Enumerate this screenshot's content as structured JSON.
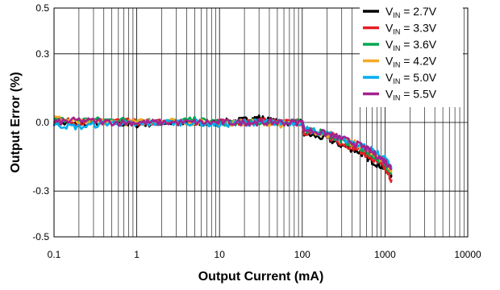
{
  "chart_data": {
    "type": "line",
    "xlabel": "Output Current (mA)",
    "ylabel": "Output Error (%)",
    "x_scale": "log",
    "xlim": [
      0.1,
      10000
    ],
    "ylim": [
      -0.5,
      0.5
    ],
    "x_ticks": [
      0.1,
      1,
      10,
      100,
      1000,
      10000
    ],
    "x_tick_labels": [
      "0.1",
      "1",
      "10",
      "100",
      "1000",
      "10000"
    ],
    "y_ticks": [
      0.5,
      0.3,
      0.0,
      -0.3,
      -0.5
    ],
    "y_tick_labels": [
      "0.5",
      "0.3",
      "0.0",
      "-0.3",
      "-0.5"
    ],
    "grid": true,
    "legend_position": "top-right",
    "series": [
      {
        "name": "V_IN = 2.7V",
        "label_main": "V",
        "label_sub": "IN",
        "label_rest": " = 2.7V",
        "color": "#000000",
        "x": [
          0.1,
          0.2,
          0.5,
          1,
          2,
          5,
          10,
          20,
          30,
          50,
          100,
          105,
          200,
          300,
          500,
          700,
          1000,
          1200
        ],
        "y": [
          0.0,
          -0.01,
          0.0,
          -0.01,
          0.0,
          -0.01,
          0.0,
          0.01,
          0.02,
          0.0,
          0.0,
          -0.05,
          -0.07,
          -0.1,
          -0.13,
          -0.17,
          -0.2,
          -0.23
        ]
      },
      {
        "name": "V_IN = 3.3V",
        "label_main": "V",
        "label_sub": "IN",
        "label_rest": " = 3.3V",
        "color": "#e41e25",
        "x": [
          0.1,
          0.2,
          0.5,
          1,
          2,
          5,
          10,
          20,
          30,
          50,
          100,
          105,
          200,
          300,
          500,
          700,
          1000,
          1200
        ],
        "y": [
          0.01,
          0.0,
          0.01,
          0.0,
          0.0,
          0.0,
          0.0,
          0.0,
          0.01,
          0.0,
          0.0,
          -0.04,
          -0.06,
          -0.09,
          -0.12,
          -0.16,
          -0.2,
          -0.25
        ]
      },
      {
        "name": "V_IN = 3.6V",
        "label_main": "V",
        "label_sub": "IN",
        "label_rest": " = 3.6V",
        "color": "#00a650",
        "x": [
          0.1,
          0.2,
          0.5,
          1,
          2,
          5,
          10,
          20,
          30,
          50,
          100,
          105,
          200,
          300,
          500,
          700,
          1000,
          1200
        ],
        "y": [
          0.01,
          0.01,
          0.01,
          0.01,
          0.0,
          0.01,
          0.0,
          0.0,
          0.0,
          0.0,
          0.0,
          -0.03,
          -0.05,
          -0.08,
          -0.11,
          -0.14,
          -0.18,
          -0.22
        ]
      },
      {
        "name": "V_IN = 4.2V",
        "label_main": "V",
        "label_sub": "IN",
        "label_rest": " = 4.2V",
        "color": "#f7a823",
        "x": [
          0.1,
          0.2,
          0.5,
          1,
          2,
          5,
          10,
          20,
          30,
          50,
          100,
          105,
          200,
          300,
          500,
          700,
          1000,
          1200
        ],
        "y": [
          0.02,
          0.0,
          0.0,
          0.0,
          0.01,
          0.0,
          0.0,
          0.0,
          0.0,
          -0.01,
          0.0,
          -0.03,
          -0.05,
          -0.07,
          -0.1,
          -0.13,
          -0.17,
          -0.21
        ]
      },
      {
        "name": "V_IN = 5.0V",
        "label_main": "V",
        "label_sub": "IN",
        "label_rest": " = 5.0V",
        "color": "#00aeef",
        "x": [
          0.1,
          0.2,
          0.5,
          1,
          2,
          5,
          10,
          20,
          30,
          50,
          100,
          105,
          200,
          300,
          500,
          700,
          1000,
          1200
        ],
        "y": [
          -0.01,
          -0.02,
          0.0,
          -0.01,
          0.0,
          0.0,
          -0.01,
          0.0,
          0.0,
          0.0,
          0.0,
          -0.03,
          -0.05,
          -0.07,
          -0.1,
          -0.12,
          -0.16,
          -0.2
        ]
      },
      {
        "name": "V_IN = 5.5V",
        "label_main": "V",
        "label_sub": "IN",
        "label_rest": " = 5.5V",
        "color": "#a3238e",
        "x": [
          0.1,
          0.2,
          0.5,
          1,
          2,
          5,
          10,
          20,
          30,
          50,
          100,
          105,
          200,
          300,
          500,
          700,
          1000,
          1200
        ],
        "y": [
          0.0,
          0.01,
          0.0,
          0.0,
          0.0,
          0.0,
          0.0,
          0.0,
          0.0,
          0.0,
          0.0,
          -0.03,
          -0.05,
          -0.07,
          -0.1,
          -0.13,
          -0.17,
          -0.2
        ]
      }
    ]
  }
}
